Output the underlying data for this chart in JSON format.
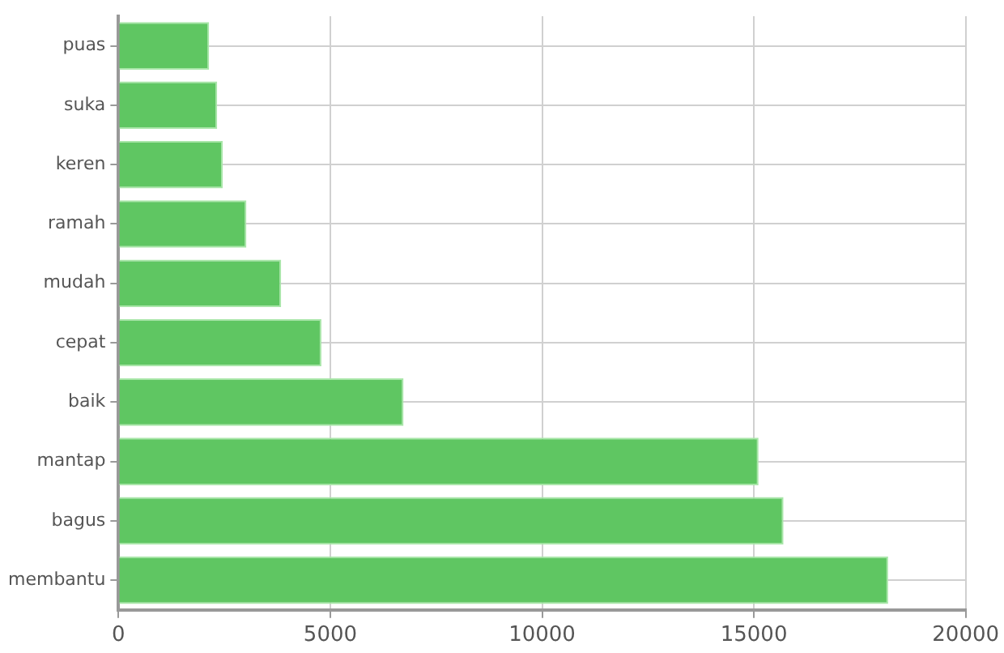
{
  "chart_data": {
    "type": "bar",
    "orientation": "horizontal",
    "categories": [
      "puas",
      "suka",
      "keren",
      "ramah",
      "mudah",
      "cepat",
      "baik",
      "mantap",
      "bagus",
      "membantu"
    ],
    "values": [
      2140,
      2330,
      2460,
      3020,
      3840,
      4790,
      6730,
      15110,
      15700,
      18170
    ],
    "color": "#5fc662",
    "xlim": [
      0,
      20000
    ],
    "xticks": [
      0,
      5000,
      10000,
      15000,
      20000
    ],
    "grid": true,
    "legend": false
  }
}
